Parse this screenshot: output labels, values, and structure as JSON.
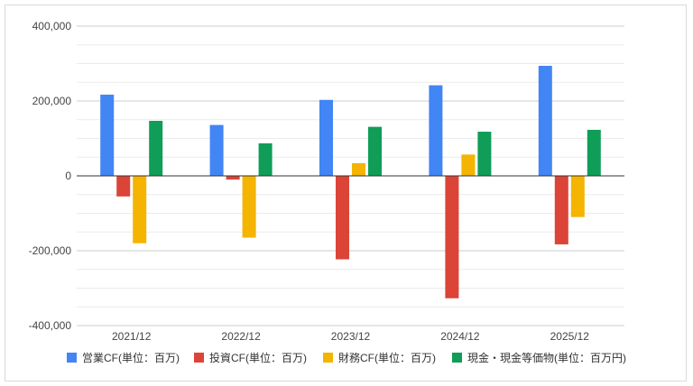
{
  "chart_data": {
    "type": "bar",
    "categories": [
      "2021/12",
      "2022/12",
      "2023/12",
      "2024/12",
      "2025/12"
    ],
    "series": [
      {
        "name": "営業CF(単位：百万)",
        "color": "#4285f4",
        "values": [
          217000,
          136000,
          203000,
          242000,
          294000
        ]
      },
      {
        "name": "投資CF(単位：百万)",
        "color": "#db4437",
        "values": [
          -55000,
          -10000,
          -223000,
          -327000,
          -183000
        ]
      },
      {
        "name": "財務CF(単位：百万)",
        "color": "#f4b400",
        "values": [
          -180000,
          -165000,
          34000,
          57000,
          -110000
        ]
      },
      {
        "name": "現金・現金等価物(単位：百万円)",
        "color": "#0f9d58",
        "values": [
          147000,
          87000,
          131000,
          118000,
          123000
        ]
      }
    ],
    "ylim": [
      -400000,
      400000
    ],
    "yticks": [
      "400,000",
      "200,000",
      "0",
      "-200,000",
      "-400,000"
    ],
    "ytick_values": [
      400000,
      200000,
      0,
      -200000,
      -400000
    ],
    "grid": true,
    "legend_position": "bottom",
    "xlabel": "",
    "ylabel": "",
    "title": ""
  }
}
